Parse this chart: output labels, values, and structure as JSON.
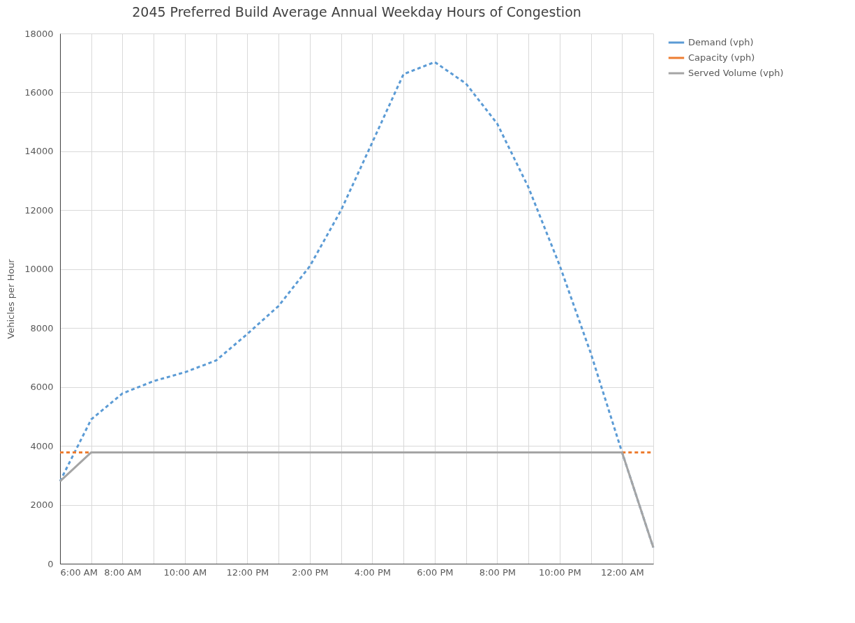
{
  "chart_data": {
    "type": "line",
    "title": "2045 Preferred Build Average Annual Weekday Hours of Congestion",
    "ylabel": "Vehicles per Hour",
    "x": [
      6,
      7,
      8,
      9,
      10,
      11,
      12,
      13,
      14,
      15,
      16,
      17,
      18,
      19,
      20,
      21,
      22,
      23,
      24,
      25
    ],
    "series": [
      {
        "name": "Demand (vph)",
        "color": "#5b9bd5",
        "line_style": "dashed",
        "values": [
          2800,
          4900,
          5780,
          6200,
          6500,
          6900,
          7800,
          8750,
          10100,
          12000,
          14300,
          16620,
          17030,
          16300,
          14940,
          12780,
          10130,
          7140,
          3780,
          550
        ]
      },
      {
        "name": "Capacity (vph)",
        "color": "#ed7d31",
        "line_style": "dashed",
        "values": [
          3780,
          3780,
          null,
          null,
          null,
          null,
          null,
          null,
          null,
          null,
          null,
          null,
          null,
          null,
          null,
          null,
          null,
          null,
          3780,
          3780
        ]
      },
      {
        "name": "Served Volume (vph)",
        "color": "#a5a5a5",
        "line_style": "solid",
        "values": [
          2800,
          3780,
          3780,
          3780,
          3780,
          3780,
          3780,
          3780,
          3780,
          3780,
          3780,
          3780,
          3780,
          3780,
          3780,
          3780,
          3780,
          3780,
          3780,
          550
        ]
      }
    ],
    "xlim": [
      6,
      25
    ],
    "xticks": [
      {
        "value": 6,
        "label": "6:00 AM"
      },
      {
        "value": 7,
        "label": null
      },
      {
        "value": 8,
        "label": "8:00 AM"
      },
      {
        "value": 9,
        "label": null
      },
      {
        "value": 10,
        "label": "10:00 AM"
      },
      {
        "value": 11,
        "label": null
      },
      {
        "value": 12,
        "label": "12:00 PM"
      },
      {
        "value": 13,
        "label": null
      },
      {
        "value": 14,
        "label": "2:00 PM"
      },
      {
        "value": 15,
        "label": null
      },
      {
        "value": 16,
        "label": "4:00 PM"
      },
      {
        "value": 17,
        "label": null
      },
      {
        "value": 18,
        "label": "6:00 PM"
      },
      {
        "value": 19,
        "label": null
      },
      {
        "value": 20,
        "label": "8:00 PM"
      },
      {
        "value": 21,
        "label": null
      },
      {
        "value": 22,
        "label": "10:00 PM"
      },
      {
        "value": 23,
        "label": null
      },
      {
        "value": 24,
        "label": "12:00 AM"
      },
      {
        "value": 25,
        "label": null
      }
    ],
    "ylim": [
      0,
      18000
    ],
    "yticks": [
      0,
      2000,
      4000,
      6000,
      8000,
      10000,
      12000,
      14000,
      16000,
      18000
    ],
    "grid": true,
    "legend": "right",
    "marker": "none"
  }
}
